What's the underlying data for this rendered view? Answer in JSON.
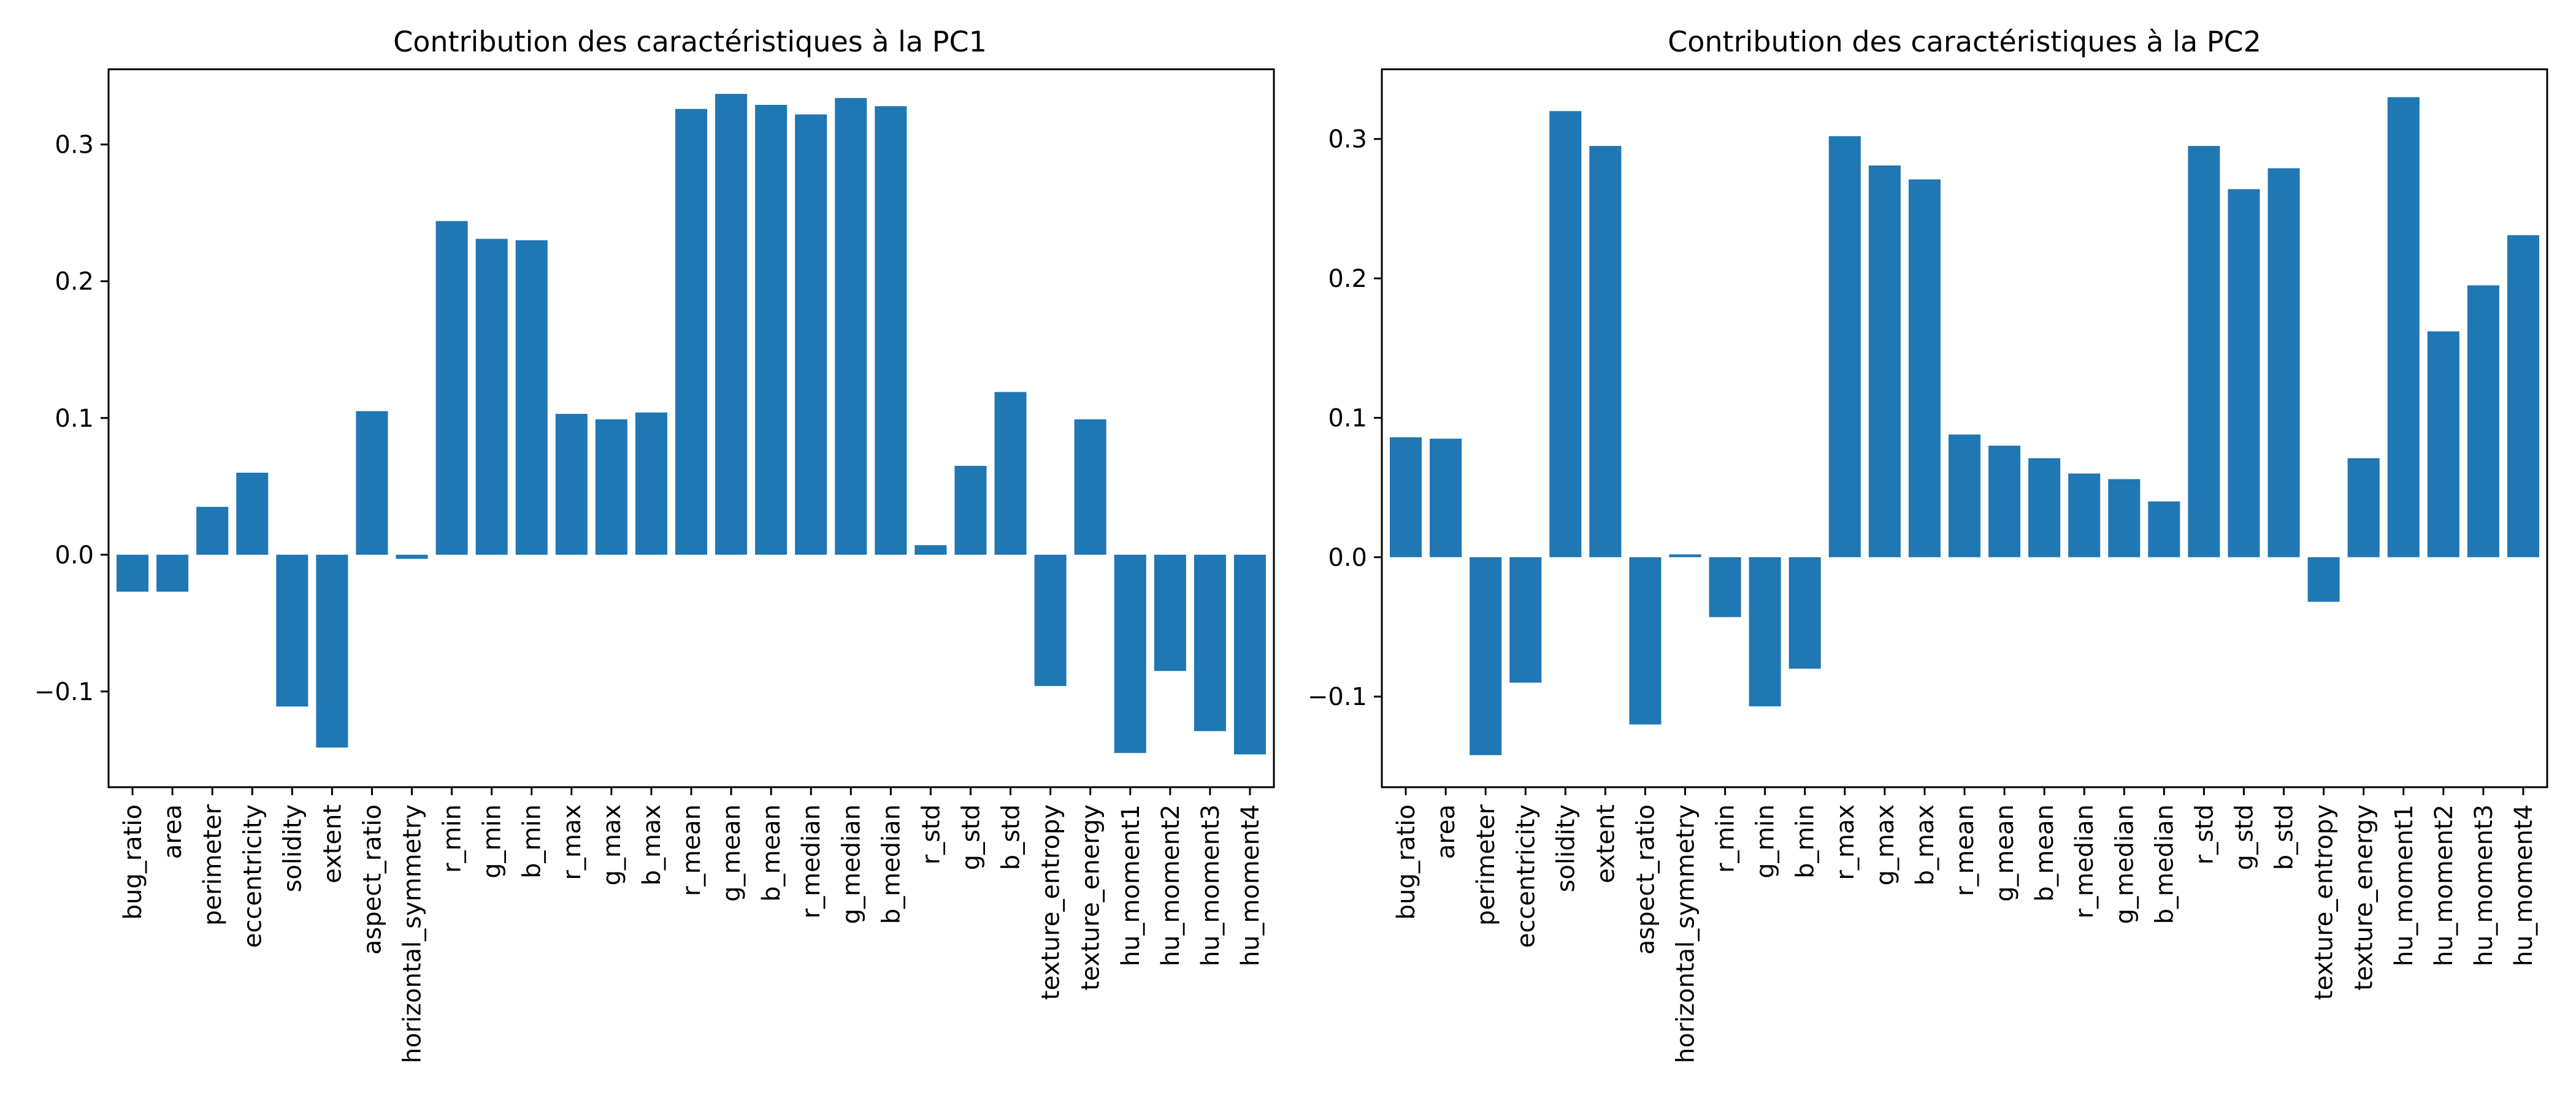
{
  "colors": {
    "bar": "#1f77b4",
    "axis": "#000000",
    "background": "#ffffff"
  },
  "chart_data": [
    {
      "type": "bar",
      "title": "Contribution des caractéristiques à la PC1",
      "xlabel": "",
      "ylabel": "",
      "ylim": [
        -0.17,
        0.355
      ],
      "yticks": [
        -0.1,
        0.0,
        0.1,
        0.2,
        0.3
      ],
      "ytick_labels": [
        "−0.1",
        "0.0",
        "0.1",
        "0.2",
        "0.3"
      ],
      "grid": false,
      "categories": [
        "bug_ratio",
        "area",
        "perimeter",
        "eccentricity",
        "solidity",
        "extent",
        "aspect_ratio",
        "horizontal_symmetry",
        "r_min",
        "g_min",
        "b_min",
        "r_max",
        "g_max",
        "b_max",
        "r_mean",
        "g_mean",
        "b_mean",
        "r_median",
        "g_median",
        "b_median",
        "r_std",
        "g_std",
        "b_std",
        "texture_entropy",
        "texture_energy",
        "hu_moment1",
        "hu_moment2",
        "hu_moment3",
        "hu_moment4"
      ],
      "values": [
        -0.027,
        -0.027,
        0.035,
        0.06,
        -0.111,
        -0.141,
        0.105,
        -0.003,
        0.244,
        0.231,
        0.23,
        0.103,
        0.099,
        0.104,
        0.326,
        0.337,
        0.329,
        0.322,
        0.334,
        0.328,
        0.007,
        0.065,
        0.119,
        -0.096,
        0.099,
        -0.145,
        -0.085,
        -0.129,
        -0.146
      ]
    },
    {
      "type": "bar",
      "title": "Contribution des caractéristiques à la PC2",
      "xlabel": "",
      "ylabel": "",
      "ylim": [
        -0.165,
        0.35
      ],
      "yticks": [
        -0.1,
        0.0,
        0.1,
        0.2,
        0.3
      ],
      "ytick_labels": [
        "−0.1",
        "0.0",
        "0.1",
        "0.2",
        "0.3"
      ],
      "grid": false,
      "categories": [
        "bug_ratio",
        "area",
        "perimeter",
        "eccentricity",
        "solidity",
        "extent",
        "aspect_ratio",
        "horizontal_symmetry",
        "r_min",
        "g_min",
        "b_min",
        "r_max",
        "g_max",
        "b_max",
        "r_mean",
        "g_mean",
        "b_mean",
        "r_median",
        "g_median",
        "b_median",
        "r_std",
        "g_std",
        "b_std",
        "texture_entropy",
        "texture_energy",
        "hu_moment1",
        "hu_moment2",
        "hu_moment3",
        "hu_moment4"
      ],
      "values": [
        0.086,
        0.085,
        -0.142,
        -0.09,
        0.32,
        0.295,
        -0.12,
        0.002,
        -0.043,
        -0.107,
        -0.08,
        0.302,
        0.281,
        0.271,
        0.088,
        0.08,
        0.071,
        0.06,
        0.056,
        0.04,
        0.295,
        0.264,
        0.279,
        -0.032,
        0.071,
        0.33,
        0.162,
        0.195,
        0.231
      ]
    }
  ]
}
